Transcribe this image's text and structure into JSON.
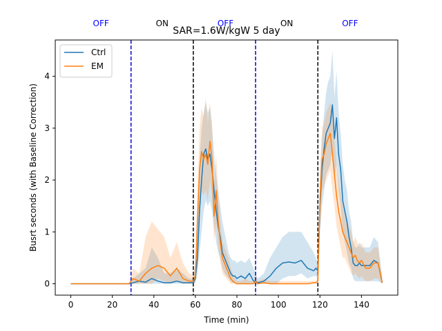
{
  "chart_data": {
    "type": "line",
    "title": "SAR=1.6W/kgW 5 day",
    "xlabel": "Time (min)",
    "ylabel": "Busrt seconds (with Baseline Correction)",
    "xlim": [
      -7.5,
      157.5
    ],
    "ylim": [
      -0.22,
      4.7
    ],
    "xticks": [
      0,
      20,
      40,
      60,
      80,
      100,
      120,
      140
    ],
    "yticks": [
      0,
      1,
      2,
      3,
      4
    ],
    "grid": false,
    "legend": {
      "placement": "upper-left",
      "entries": [
        "Ctrl",
        "EM"
      ]
    },
    "phase_labels": [
      {
        "text": "OFF",
        "x": 14.5,
        "color": "#0000ff"
      },
      {
        "text": "ON",
        "x": 44,
        "color": "#000000"
      },
      {
        "text": "OFF",
        "x": 74.5,
        "color": "#0000ff"
      },
      {
        "text": "ON",
        "x": 104,
        "color": "#000000"
      },
      {
        "text": "OFF",
        "x": 134.5,
        "color": "#0000ff"
      }
    ],
    "vlines": [
      {
        "x": 29,
        "color": "#0000cc"
      },
      {
        "x": 59,
        "color": "#000000"
      },
      {
        "x": 89,
        "color": "#0000cc"
      },
      {
        "x": 119,
        "color": "#000000"
      }
    ],
    "series": [
      {
        "name": "Ctrl",
        "color": "#1f77b4",
        "x": [
          0,
          5,
          10,
          15,
          20,
          25,
          28,
          30,
          33,
          36,
          39,
          42,
          45,
          48,
          51,
          54,
          57,
          59,
          60,
          61,
          62,
          63,
          64,
          65,
          66,
          67,
          68,
          69,
          70,
          71,
          72,
          73,
          74,
          75,
          76,
          77,
          78,
          79,
          80,
          82,
          84,
          86,
          88,
          89,
          90,
          93,
          96,
          99,
          102,
          105,
          108,
          111,
          114,
          117,
          118,
          119,
          120,
          121,
          122,
          123,
          124,
          125,
          126,
          127,
          128,
          129,
          130,
          131,
          132,
          133,
          134,
          135,
          136,
          137,
          138,
          139,
          140,
          142,
          144,
          146,
          148,
          150
        ],
        "y": [
          0,
          0,
          0,
          0,
          0,
          0,
          0,
          0.02,
          0.05,
          0.03,
          0.1,
          0.05,
          0.02,
          0.02,
          0.05,
          0.02,
          0.02,
          0.02,
          0.1,
          0.5,
          1.4,
          2.0,
          2.5,
          2.6,
          2.4,
          2.5,
          2.2,
          1.8,
          1.4,
          1.1,
          0.9,
          0.6,
          0.5,
          0.4,
          0.3,
          0.2,
          0.15,
          0.15,
          0.1,
          0.15,
          0.1,
          0.2,
          0.05,
          0.05,
          0.02,
          0.05,
          0.15,
          0.3,
          0.4,
          0.42,
          0.4,
          0.45,
          0.3,
          0.25,
          0.3,
          0.25,
          1.5,
          2.2,
          2.6,
          2.9,
          3.0,
          3.1,
          3.45,
          2.8,
          3.2,
          2.5,
          2.2,
          1.6,
          1.4,
          1.2,
          0.9,
          0.7,
          0.4,
          0.35,
          0.35,
          0.4,
          0.35,
          0.35,
          0.35,
          0.45,
          0.4,
          0.02
        ],
        "lower": [
          0,
          0,
          0,
          0,
          0,
          0,
          0,
          0,
          0,
          0,
          0,
          0,
          0,
          0,
          0,
          0,
          0,
          0,
          0.02,
          0.2,
          0.6,
          1.0,
          1.4,
          1.6,
          1.5,
          1.6,
          1.4,
          1.1,
          0.8,
          0.6,
          0.5,
          0.3,
          0.2,
          0.15,
          0.1,
          0.05,
          0.02,
          0.02,
          0,
          0,
          0,
          0,
          0,
          0,
          0,
          0,
          0,
          0,
          0.1,
          0.15,
          0.15,
          0.2,
          0.1,
          0.15,
          0.15,
          0.1,
          1.0,
          1.5,
          1.8,
          2.1,
          2.2,
          2.3,
          2.6,
          2.0,
          2.3,
          1.8,
          1.5,
          1.0,
          0.8,
          0.6,
          0.4,
          0.3,
          0.1,
          0.05,
          0.05,
          0.05,
          0.05,
          0.05,
          0.05,
          0.05,
          0.05,
          0
        ],
        "upper": [
          0,
          0,
          0,
          0,
          0,
          0,
          0,
          0.1,
          0.2,
          0.3,
          0.7,
          0.5,
          0.2,
          0.2,
          0.3,
          0.2,
          0.1,
          0.1,
          0.4,
          1.2,
          2.4,
          3.0,
          3.3,
          3.5,
          3.3,
          3.4,
          3.0,
          2.5,
          2.1,
          1.8,
          1.5,
          1.2,
          1.0,
          0.8,
          0.6,
          0.5,
          0.45,
          0.45,
          0.4,
          0.45,
          0.4,
          0.5,
          0.3,
          0.2,
          0.1,
          0.2,
          0.5,
          0.7,
          0.9,
          1.0,
          1.0,
          1.0,
          0.8,
          0.6,
          0.5,
          0.4,
          2.0,
          2.8,
          3.3,
          3.7,
          3.9,
          4.0,
          4.5,
          3.6,
          4.1,
          3.3,
          2.9,
          2.3,
          2.0,
          1.8,
          1.4,
          1.2,
          0.8,
          0.7,
          0.7,
          0.8,
          0.7,
          0.7,
          0.7,
          0.9,
          0.8,
          0.1
        ]
      },
      {
        "name": "EM",
        "color": "#ff7f0e",
        "x": [
          0,
          5,
          10,
          15,
          20,
          25,
          28,
          29,
          30,
          33,
          36,
          39,
          42,
          45,
          48,
          51,
          54,
          57,
          59,
          60,
          61,
          62,
          63,
          64,
          65,
          66,
          67,
          68,
          69,
          70,
          71,
          72,
          73,
          74,
          75,
          76,
          77,
          78,
          79,
          80,
          82,
          84,
          86,
          88,
          89,
          90,
          93,
          96,
          99,
          102,
          105,
          108,
          111,
          114,
          117,
          118,
          119,
          120,
          121,
          122,
          123,
          124,
          125,
          126,
          127,
          128,
          129,
          130,
          131,
          132,
          133,
          134,
          135,
          136,
          137,
          138,
          139,
          140,
          142,
          144,
          146,
          148,
          150
        ],
        "y": [
          0,
          0,
          0,
          0,
          0,
          0,
          0,
          0.05,
          0.1,
          0.05,
          0.2,
          0.3,
          0.35,
          0.3,
          0.15,
          0.3,
          0.1,
          0.05,
          0.05,
          0.15,
          1.2,
          2.2,
          2.55,
          2.4,
          2.5,
          2.3,
          2.75,
          2.4,
          1.3,
          1.8,
          1.2,
          0.8,
          0.5,
          0.4,
          0.3,
          0.2,
          0.1,
          0.05,
          0.02,
          0,
          0,
          0,
          0,
          0,
          0.05,
          0,
          0.02,
          0,
          0,
          0,
          0,
          0,
          0,
          0,
          0.02,
          0.02,
          0.05,
          1.6,
          2.4,
          2.5,
          2.7,
          2.8,
          2.9,
          2.5,
          2.1,
          1.7,
          1.4,
          1.2,
          1.0,
          0.9,
          0.8,
          0.7,
          0.6,
          0.5,
          0.55,
          0.45,
          0.4,
          0.45,
          0.3,
          0.3,
          0.4,
          0.4,
          0.02
        ],
        "lower": [
          0,
          0,
          0,
          0,
          0,
          0,
          0,
          0,
          0,
          0,
          0,
          0,
          0.1,
          0.05,
          0,
          0.05,
          0,
          0,
          0,
          0.02,
          0.6,
          1.5,
          1.8,
          1.7,
          1.8,
          1.6,
          2.0,
          1.7,
          0.8,
          1.2,
          0.7,
          0.4,
          0.2,
          0.15,
          0.1,
          0.05,
          0,
          0,
          0,
          0,
          0,
          0,
          0,
          0,
          0,
          0,
          0,
          0,
          0,
          0,
          0,
          0,
          0,
          0,
          0,
          0,
          0,
          1.0,
          1.8,
          1.9,
          2.0,
          2.1,
          2.2,
          1.8,
          1.5,
          1.1,
          0.9,
          0.7,
          0.5,
          0.5,
          0.4,
          0.3,
          0.2,
          0.15,
          0.2,
          0.15,
          0.1,
          0.15,
          0.05,
          0.05,
          0.1,
          0.1,
          0
        ],
        "upper": [
          0,
          0,
          0,
          0,
          0,
          0,
          0,
          0.1,
          0.3,
          0.2,
          0.9,
          1.2,
          1.05,
          0.9,
          0.5,
          0.8,
          0.4,
          0.2,
          0.15,
          0.4,
          1.8,
          3.0,
          3.4,
          3.2,
          3.6,
          3.1,
          3.5,
          3.1,
          1.9,
          2.5,
          1.7,
          1.2,
          0.8,
          0.7,
          0.6,
          0.5,
          0.3,
          0.2,
          0.1,
          0.05,
          0.05,
          0.1,
          0.05,
          0.05,
          0.2,
          0.05,
          0.1,
          0.05,
          0.05,
          0.05,
          0.05,
          0.05,
          0.05,
          0.05,
          0.05,
          0.05,
          0.1,
          2.2,
          3.0,
          3.1,
          3.3,
          3.4,
          3.5,
          3.2,
          2.8,
          2.3,
          2.0,
          1.7,
          1.5,
          1.3,
          1.2,
          1.1,
          1.0,
          0.8,
          0.9,
          0.8,
          0.7,
          0.8,
          0.6,
          0.6,
          0.7,
          0.7,
          0.1
        ]
      }
    ]
  }
}
